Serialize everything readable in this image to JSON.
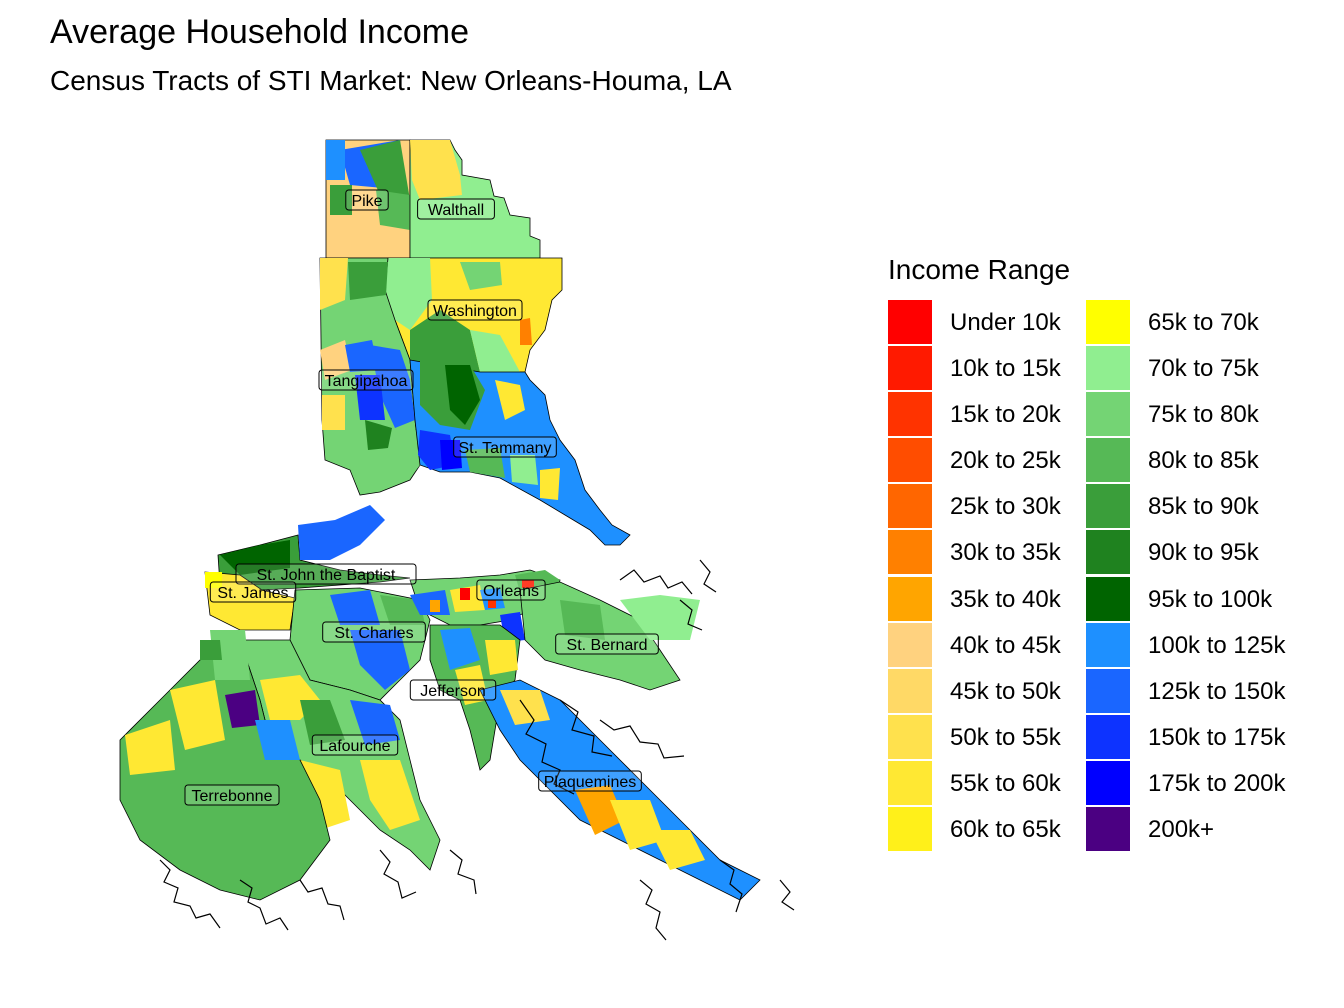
{
  "title": "Average Household Income",
  "subtitle": "Census Tracts of STI Market: New Orleans-Houma, LA",
  "legend": {
    "title": "Income Range",
    "items": [
      {
        "label": "Under 10k",
        "color": "#ff0000"
      },
      {
        "label": "10k to 15k",
        "color": "#ff1a00"
      },
      {
        "label": "15k to 20k",
        "color": "#ff3300"
      },
      {
        "label": "20k to 25k",
        "color": "#ff4d00"
      },
      {
        "label": "25k to 30k",
        "color": "#ff6600"
      },
      {
        "label": "30k to 35k",
        "color": "#ff8000"
      },
      {
        "label": "35k to 40k",
        "color": "#ffa500"
      },
      {
        "label": "40k to 45k",
        "color": "#ffd27f"
      },
      {
        "label": "45k to 50k",
        "color": "#ffd966"
      },
      {
        "label": "50k to 55k",
        "color": "#ffe14d"
      },
      {
        "label": "55k to 60k",
        "color": "#ffe833"
      },
      {
        "label": "60k to 65k",
        "color": "#fff01a"
      },
      {
        "label": "65k to 70k",
        "color": "#ffff00"
      },
      {
        "label": "70k to 75k",
        "color": "#90ee90"
      },
      {
        "label": "75k to 80k",
        "color": "#74d474"
      },
      {
        "label": "80k to 85k",
        "color": "#56b956"
      },
      {
        "label": "85k to 90k",
        "color": "#3a9e3a"
      },
      {
        "label": "90k to 95k",
        "color": "#1f821f"
      },
      {
        "label": "95k to 100k",
        "color": "#006400"
      },
      {
        "label": "100k to 125k",
        "color": "#1e90ff"
      },
      {
        "label": "125k to 150k",
        "color": "#1a66ff"
      },
      {
        "label": "150k to 175k",
        "color": "#0d33ff"
      },
      {
        "label": "175k to 200k",
        "color": "#0000ff"
      },
      {
        "label": "200k+",
        "color": "#4b0082"
      }
    ]
  },
  "parishes": [
    {
      "name": "Pike"
    },
    {
      "name": "Walthall"
    },
    {
      "name": "Washington"
    },
    {
      "name": "Tangipahoa"
    },
    {
      "name": "St. Tammany"
    },
    {
      "name": "St. John the Baptist"
    },
    {
      "name": "St. James"
    },
    {
      "name": "Orleans"
    },
    {
      "name": "St. Charles"
    },
    {
      "name": "St. Bernard"
    },
    {
      "name": "Jefferson"
    },
    {
      "name": "Lafourche"
    },
    {
      "name": "Terrebonne"
    },
    {
      "name": "Plaquemines"
    }
  ]
}
